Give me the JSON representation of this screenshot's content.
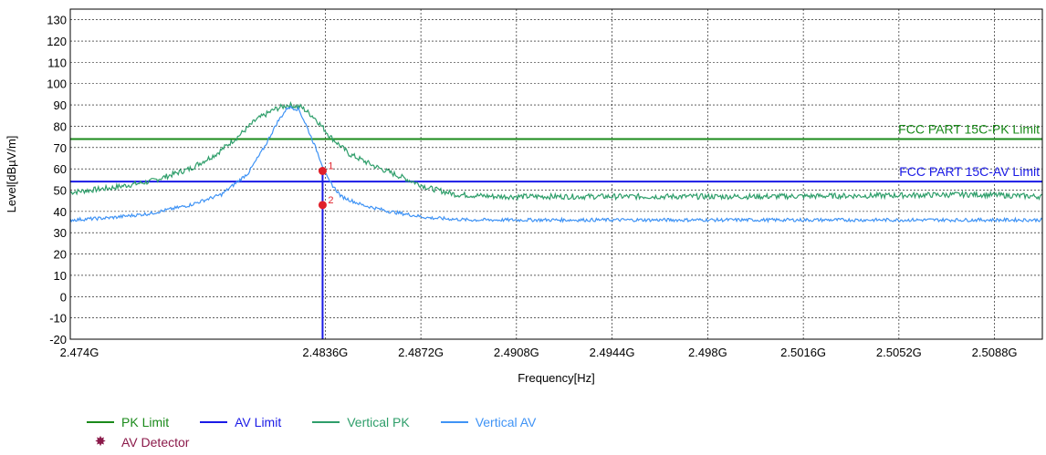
{
  "chart_data": {
    "type": "line",
    "xlabel": "Frequency[Hz]",
    "ylabel": "Level[dBµV/m]",
    "xlim": [
      2.474,
      2.5106
    ],
    "ylim": [
      -20,
      135
    ],
    "yticks": [
      -20,
      -10,
      0,
      10,
      20,
      30,
      40,
      50,
      60,
      70,
      80,
      90,
      100,
      110,
      120,
      130
    ],
    "xticks": [
      2.474,
      2.4836,
      2.4872,
      2.4908,
      2.4944,
      2.498,
      2.5016,
      2.5052,
      2.5088
    ],
    "xtick_labels": [
      "2.474G",
      "2.4836G",
      "2.4872G",
      "2.4908G",
      "2.4944G",
      "2.498G",
      "2.5016G",
      "2.5052G",
      "2.5088G"
    ],
    "grid": true,
    "limit_lines": [
      {
        "name": "PK Limit",
        "value": 74,
        "label": "FCC PART 15C-PK Limit",
        "color": "#1a8a1a"
      },
      {
        "name": "AV Limit",
        "value": 54,
        "label": "FCC PART 15C-AV Limit",
        "color": "#1a1ae6"
      }
    ],
    "series": [
      {
        "name": "Vertical PK",
        "color": "#2e9e6a",
        "points": [
          [
            2.474,
            49
          ],
          [
            2.4755,
            51
          ],
          [
            2.477,
            54
          ],
          [
            2.4785,
            60
          ],
          [
            2.4795,
            67
          ],
          [
            2.4803,
            75
          ],
          [
            2.481,
            83
          ],
          [
            2.4817,
            88
          ],
          [
            2.4822,
            90
          ],
          [
            2.4827,
            89
          ],
          [
            2.4832,
            84
          ],
          [
            2.4838,
            75
          ],
          [
            2.4845,
            67
          ],
          [
            2.4855,
            61
          ],
          [
            2.4865,
            56
          ],
          [
            2.4875,
            51
          ],
          [
            2.4885,
            48
          ],
          [
            2.49,
            47
          ],
          [
            2.495,
            47
          ],
          [
            2.5,
            47
          ],
          [
            2.505,
            47.5
          ],
          [
            2.508,
            48
          ],
          [
            2.5106,
            47
          ]
        ]
      },
      {
        "name": "Vertical AV",
        "color": "#3f93f5",
        "points": [
          [
            2.474,
            36
          ],
          [
            2.4755,
            37
          ],
          [
            2.477,
            39
          ],
          [
            2.4785,
            43
          ],
          [
            2.4797,
            48
          ],
          [
            2.4807,
            58
          ],
          [
            2.4813,
            70
          ],
          [
            2.4818,
            82
          ],
          [
            2.4822,
            89
          ],
          [
            2.4826,
            88
          ],
          [
            2.4829,
            80
          ],
          [
            2.4833,
            68
          ],
          [
            2.4837,
            55
          ],
          [
            2.4842,
            47
          ],
          [
            2.485,
            43
          ],
          [
            2.486,
            40
          ],
          [
            2.4875,
            37
          ],
          [
            2.489,
            36
          ],
          [
            2.495,
            36
          ],
          [
            2.5,
            36
          ],
          [
            2.505,
            36
          ],
          [
            2.5106,
            36
          ]
        ]
      }
    ],
    "markers": [
      {
        "label": "1",
        "x": 2.4835,
        "y": 59
      },
      {
        "label": "2",
        "x": 2.4835,
        "y": 43
      }
    ],
    "marker_drop": {
      "x": 2.4835,
      "color": "#1a1ae6"
    },
    "legend": {
      "position": "bottom",
      "items": [
        {
          "label": "PK Limit",
          "color": "#1a8a1a",
          "kind": "line"
        },
        {
          "label": "AV Limit",
          "color": "#1a1ae6",
          "kind": "line"
        },
        {
          "label": "Vertical PK",
          "color": "#2e9e6a",
          "kind": "line"
        },
        {
          "label": "Vertical AV",
          "color": "#3f93f5",
          "kind": "line"
        },
        {
          "label": "AV Detector",
          "color": "#8b1a4a",
          "kind": "star"
        }
      ]
    }
  }
}
